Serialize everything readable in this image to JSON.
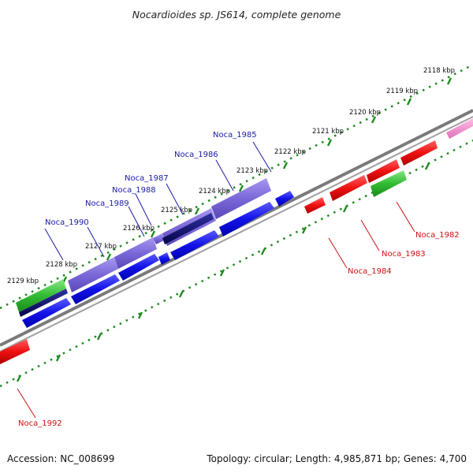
{
  "title": "Nocardioides sp. JS614, complete genome",
  "footer": {
    "accession": "Accession: NC_008699",
    "summary": "Topology: circular; Length: 4,985,871 bp; Genes: 4,700"
  },
  "ticks": [
    "2118 kbp",
    "2119 kbp",
    "2120 kbp",
    "2121 kbp",
    "2122 kbp",
    "2123 kbp",
    "2124 kbp",
    "2125 kbp",
    "2126 kbp",
    "2127 kbp",
    "2128 kbp",
    "2129 kbp"
  ],
  "labels_top": [
    "Noca_1985",
    "Noca_1986",
    "Noca_1987",
    "Noca_1988",
    "Noca_1989",
    "Noca_1990"
  ],
  "labels_bottom": [
    "Noca_1982",
    "Noca_1983",
    "Noca_1984",
    "Noca_1992"
  ],
  "colors": {
    "blue": "#1010e0",
    "navy": "#0a0a70",
    "purple": "#7b68d8",
    "red": "#ee1111",
    "green": "#33bb33",
    "pink": "#f08cc8",
    "backbone": "#808080",
    "dots": "#1d8a1d"
  }
}
